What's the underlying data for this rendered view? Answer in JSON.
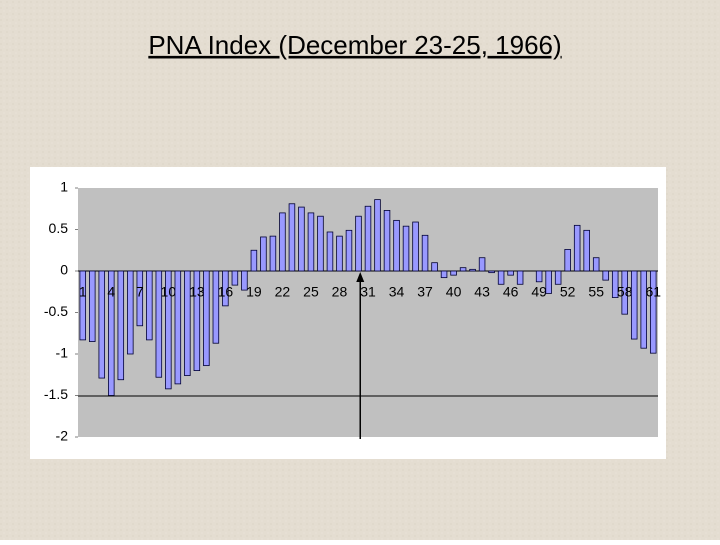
{
  "chart_data": {
    "type": "bar",
    "title": "PNA Index (December 23-25, 1966)",
    "categories": [
      "1",
      null,
      null,
      "4",
      null,
      null,
      "7",
      null,
      null,
      "10",
      null,
      null,
      "13",
      null,
      null,
      "16",
      null,
      null,
      "19",
      null,
      null,
      "22",
      null,
      null,
      "25",
      null,
      null,
      "28",
      null,
      null,
      "31",
      null,
      null,
      "34",
      null,
      null,
      "37",
      null,
      null,
      "40",
      null,
      null,
      "43",
      null,
      null,
      "46",
      null,
      null,
      "49",
      null,
      null,
      "52",
      null,
      null,
      "55",
      null,
      null,
      "58",
      null,
      null,
      "61"
    ],
    "values": [
      -0.83,
      -0.85,
      -1.29,
      -1.5,
      -1.31,
      -1.0,
      -0.66,
      -0.83,
      -1.28,
      -1.42,
      -1.36,
      -1.26,
      -1.2,
      -1.14,
      -0.87,
      -0.42,
      -0.17,
      -0.23,
      0.25,
      0.41,
      0.42,
      0.7,
      0.81,
      0.77,
      0.7,
      0.66,
      0.47,
      0.42,
      0.49,
      0.66,
      0.78,
      0.86,
      0.73,
      0.61,
      0.54,
      0.59,
      0.43,
      0.1,
      -0.08,
      -0.05,
      0.04,
      0.02,
      0.16,
      -0.02,
      -0.16,
      -0.05,
      -0.16,
      0,
      -0.13,
      -0.27,
      -0.16,
      0.26,
      0.55,
      0.49,
      0.16,
      -0.11,
      -0.32,
      -0.52,
      -0.82,
      -0.93,
      -0.99
    ],
    "color": "#9999ff",
    "ylim": [
      -2,
      1
    ],
    "yticks": [
      -2,
      -1.5,
      -1,
      -0.5,
      0,
      0.5,
      1
    ]
  }
}
